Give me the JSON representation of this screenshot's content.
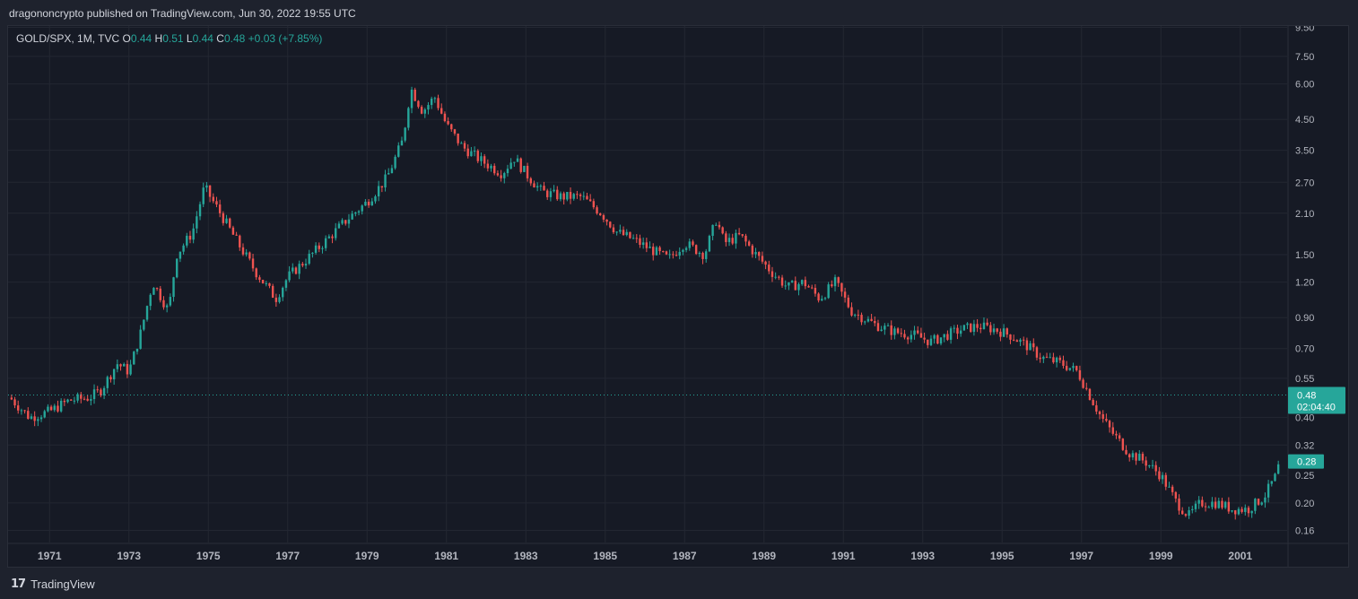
{
  "header": {
    "published": "dragononcrypto published on TradingView.com, Jun 30, 2022 19:55 UTC"
  },
  "legend": {
    "symbol": "GOLD/SPX, 1M, TVC",
    "o_label": "O",
    "o_value": "0.44",
    "h_label": "H",
    "h_value": "0.51",
    "l_label": "L",
    "l_value": "0.44",
    "c_label": "C",
    "c_value": "0.48",
    "change": "+0.03 (+7.85%)"
  },
  "footer": {
    "brand": "TradingView",
    "logo_glyph": "17"
  },
  "colors": {
    "up": "#26a69a",
    "down": "#ef5350",
    "grid": "#232732",
    "axis_text": "#b2b5be",
    "background": "#161a25"
  },
  "chart_data": {
    "type": "candlestick",
    "title": "GOLD/SPX, 1M, TVC",
    "y_scale": "log",
    "y_ticks": [
      9.5,
      7.5,
      6.0,
      4.5,
      3.5,
      2.7,
      2.1,
      1.5,
      1.2,
      0.9,
      0.7,
      0.55,
      0.4,
      0.32,
      0.25,
      0.2,
      0.16
    ],
    "y_tick_labels": [
      "9.50",
      "7.50",
      "6.00",
      "4.50",
      "3.50",
      "2.70",
      "2.10",
      "1.50",
      "1.20",
      "0.90",
      "0.70",
      "0.55",
      "0.40",
      "0.32",
      "0.25",
      "0.20",
      "0.16"
    ],
    "x_ticks": [
      1971,
      1973,
      1975,
      1977,
      1979,
      1981,
      1983,
      1985,
      1987,
      1989,
      1991,
      1993,
      1995,
      1997,
      1999,
      2001
    ],
    "x_tick_labels": [
      "1971",
      "1973",
      "1975",
      "1977",
      "1979",
      "1981",
      "1983",
      "1985",
      "1987",
      "1989",
      "1991",
      "1993",
      "1995",
      "1997",
      "1999",
      "2001"
    ],
    "x_range": [
      1970.0,
      2002.0
    ],
    "y_range": [
      0.145,
      9.6
    ],
    "price_line": {
      "value": 0.48,
      "label": "0.48",
      "countdown": "02:04:40"
    },
    "last_marker": {
      "value": 0.28,
      "label": "0.28"
    },
    "path": [
      [
        1970.0,
        0.47
      ],
      [
        1970.5,
        0.4
      ],
      [
        1971.0,
        0.42
      ],
      [
        1971.5,
        0.46
      ],
      [
        1972.0,
        0.47
      ],
      [
        1972.3,
        0.5
      ],
      [
        1972.7,
        0.62
      ],
      [
        1973.0,
        0.58
      ],
      [
        1973.3,
        0.8
      ],
      [
        1973.6,
        1.2
      ],
      [
        1974.0,
        0.95
      ],
      [
        1974.2,
        1.5
      ],
      [
        1974.6,
        1.8
      ],
      [
        1974.9,
        2.6
      ],
      [
        1975.3,
        2.1
      ],
      [
        1975.8,
        1.6
      ],
      [
        1976.2,
        1.3
      ],
      [
        1976.7,
        1.05
      ],
      [
        1977.0,
        1.25
      ],
      [
        1977.6,
        1.5
      ],
      [
        1978.0,
        1.7
      ],
      [
        1978.5,
        2.0
      ],
      [
        1979.0,
        2.3
      ],
      [
        1979.5,
        2.8
      ],
      [
        1979.9,
        3.8
      ],
      [
        1980.1,
        5.8
      ],
      [
        1980.4,
        4.8
      ],
      [
        1980.7,
        5.4
      ],
      [
        1981.0,
        4.3
      ],
      [
        1981.4,
        3.6
      ],
      [
        1981.9,
        3.2
      ],
      [
        1982.4,
        2.9
      ],
      [
        1982.7,
        3.3
      ],
      [
        1983.0,
        2.9
      ],
      [
        1983.4,
        2.5
      ],
      [
        1983.9,
        2.4
      ],
      [
        1984.4,
        2.4
      ],
      [
        1984.9,
        2.1
      ],
      [
        1985.3,
        1.8
      ],
      [
        1985.7,
        1.7
      ],
      [
        1986.2,
        1.55
      ],
      [
        1986.6,
        1.45
      ],
      [
        1987.0,
        1.65
      ],
      [
        1987.5,
        1.5
      ],
      [
        1987.8,
        2.0
      ],
      [
        1988.0,
        1.65
      ],
      [
        1988.4,
        1.75
      ],
      [
        1988.8,
        1.5
      ],
      [
        1989.2,
        1.3
      ],
      [
        1989.6,
        1.15
      ],
      [
        1990.0,
        1.2
      ],
      [
        1990.4,
        1.05
      ],
      [
        1990.8,
        1.2
      ],
      [
        1991.2,
        0.95
      ],
      [
        1991.8,
        0.85
      ],
      [
        1992.3,
        0.8
      ],
      [
        1992.8,
        0.78
      ],
      [
        1993.2,
        0.74
      ],
      [
        1993.6,
        0.78
      ],
      [
        1994.0,
        0.82
      ],
      [
        1994.4,
        0.84
      ],
      [
        1994.8,
        0.82
      ],
      [
        1995.2,
        0.78
      ],
      [
        1995.6,
        0.72
      ],
      [
        1996.0,
        0.65
      ],
      [
        1996.5,
        0.62
      ],
      [
        1996.9,
        0.58
      ],
      [
        1997.2,
        0.48
      ],
      [
        1997.5,
        0.4
      ],
      [
        1997.8,
        0.35
      ],
      [
        1998.2,
        0.3
      ],
      [
        1998.6,
        0.28
      ],
      [
        1999.0,
        0.25
      ],
      [
        1999.4,
        0.2
      ],
      [
        1999.7,
        0.18
      ],
      [
        2000.0,
        0.2
      ],
      [
        2000.4,
        0.2
      ],
      [
        2000.8,
        0.19
      ],
      [
        2001.2,
        0.19
      ],
      [
        2001.6,
        0.21
      ],
      [
        2001.9,
        0.25
      ],
      [
        2002.0,
        0.28
      ]
    ]
  }
}
